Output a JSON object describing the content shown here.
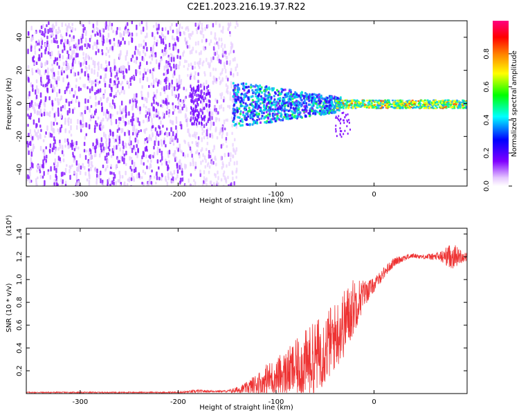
{
  "figure_title": "C2E1.2023.216.19.37.R22",
  "chart_data": [
    {
      "type": "heatmap",
      "title": "C2E1.2023.216.19.37.R22",
      "xlabel": "Height of straight line (km)",
      "ylabel": "Frequency (Hz)",
      "xlim": [
        -355,
        95
      ],
      "ylim": [
        -50,
        50
      ],
      "xticks": [
        -300,
        -200,
        -100,
        0
      ],
      "yticks": [
        -40,
        -20,
        0,
        20,
        40
      ],
      "colorbar": {
        "label": "Normalized spectral amplitude",
        "range": [
          0.0,
          1.0
        ],
        "ticks": [
          0.0,
          0.2,
          0.4,
          0.6,
          0.8
        ],
        "colormap": [
          "#ffffff",
          "#8000ff",
          "#0000ff",
          "#00ffff",
          "#00ff00",
          "#ffff00",
          "#ff8000",
          "#ff0000",
          "#ff0080"
        ]
      },
      "description_regions": [
        {
          "x_range": [
            -355,
            -195
          ],
          "freq_range": [
            -50,
            50
          ],
          "amplitude": 0.1
        },
        {
          "x_range": [
            -195,
            -140
          ],
          "freq_range": [
            -50,
            50
          ],
          "amplitude": 0.05
        },
        {
          "x_range": [
            -140,
            -40
          ],
          "freq_range": [
            -15,
            15
          ],
          "amplitude": 0.3
        },
        {
          "x_range": [
            -40,
            95
          ],
          "freq_range": [
            -3,
            3
          ],
          "amplitude": 0.45
        }
      ]
    },
    {
      "type": "line",
      "xlabel": "Height of straight line (km)",
      "ylabel": "SNR (10 * v/v)",
      "y_multiplier": "(x10⁴)",
      "xlim": [
        -355,
        95
      ],
      "ylim": [
        0,
        1.45
      ],
      "xticks": [
        -300,
        -200,
        -100,
        0
      ],
      "yticks": [
        0.2,
        0.4,
        0.6,
        0.8,
        1.0,
        1.2,
        1.4
      ],
      "ytick_labels": [
        "0.2",
        "0.4",
        "0.6",
        "0.8",
        "1.0",
        "1.2",
        "1.4"
      ],
      "series": [
        {
          "color": "#ee3333",
          "x": [
            -355,
            -300,
            -250,
            -200,
            -180,
            -170,
            -160,
            -150,
            -140,
            -130,
            -120,
            -110,
            -100,
            -90,
            -80,
            -70,
            -60,
            -50,
            -40,
            -30,
            -20,
            -10,
            0,
            10,
            20,
            30,
            40,
            50,
            60,
            70,
            80,
            90,
            95
          ],
          "y": [
            0.01,
            0.01,
            0.01,
            0.01,
            0.02,
            0.02,
            0.02,
            0.02,
            0.03,
            0.05,
            0.08,
            0.12,
            0.15,
            0.18,
            0.22,
            0.26,
            0.32,
            0.4,
            0.5,
            0.62,
            0.78,
            0.88,
            0.95,
            1.06,
            1.15,
            1.19,
            1.21,
            1.2,
            1.2,
            1.2,
            1.21,
            1.2,
            1.2
          ],
          "noise": [
            0.005,
            0.005,
            0.005,
            0.006,
            0.015,
            0.01,
            0.008,
            0.01,
            0.03,
            0.05,
            0.1,
            0.14,
            0.17,
            0.2,
            0.25,
            0.3,
            0.32,
            0.33,
            0.3,
            0.3,
            0.25,
            0.12,
            0.06,
            0.05,
            0.04,
            0.03,
            0.02,
            0.02,
            0.03,
            0.06,
            0.12,
            0.05,
            0.04
          ]
        }
      ]
    }
  ]
}
